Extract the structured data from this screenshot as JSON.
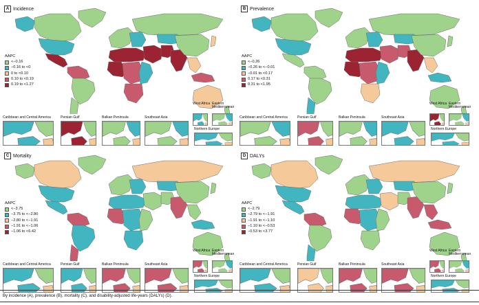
{
  "colors": {
    "c1": "#9fd28a",
    "c2": "#42b6c0",
    "c3": "#f6c99a",
    "c4": "#c85a6e",
    "c5": "#9c2332",
    "ocean": "#ffffff",
    "outline": "#6d6d6d"
  },
  "legend_title": "AAPC",
  "panels": [
    {
      "id": "A",
      "title": "Incidence",
      "legend": [
        "<−0.16",
        "−0.16 to <0",
        "0 to <0.10",
        "0.10 to <0.19",
        "0.19 to <1.27"
      ],
      "regions": {
        "na": 2,
        "ak": 2,
        "gl": 1,
        "ca": 1,
        "mx": 5,
        "sa_n": 4,
        "br": 1,
        "sa_s": 1,
        "eu_w": 1,
        "eu_e": 2,
        "ru": 1,
        "af_n": 5,
        "af_w": 5,
        "af_c": 4,
        "af_e": 2,
        "af_s": 4,
        "mena": 5,
        "ir": 5,
        "ca_st": 2,
        "in": 5,
        "cn": 1,
        "se": 3,
        "jp": 3,
        "au": 3,
        "id": 4,
        "nz": 1
      },
      "insets": {
        "carib": 2,
        "gulf": 5,
        "balkan": 1,
        "seasia": 1,
        "westaf": 2,
        "eastmed": 1,
        "neu": 2
      }
    },
    {
      "id": "B",
      "title": "Prevalence",
      "legend": [
        "<−0.26",
        "−0.26 to <−0.01",
        "−0.01 to <0.17",
        "0.17 to <0.31",
        "0.31 to <1.95"
      ],
      "regions": {
        "na": 2,
        "ak": 2,
        "gl": 1,
        "ca": 1,
        "mx": 1,
        "sa_n": 1,
        "br": 1,
        "sa_s": 2,
        "eu_w": 1,
        "eu_e": 2,
        "ru": 1,
        "af_n": 5,
        "af_w": 5,
        "af_c": 4,
        "af_e": 2,
        "af_s": 3,
        "mena": 4,
        "ir": 4,
        "ca_st": 2,
        "in": 5,
        "cn": 1,
        "se": 3,
        "jp": 1,
        "au": 1,
        "id": 2,
        "nz": 1
      },
      "insets": {
        "carib": 1,
        "gulf": 4,
        "balkan": 1,
        "seasia": 2,
        "westaf": 5,
        "eastmed": 1,
        "neu": 2
      }
    },
    {
      "id": "C",
      "title": "Mortality",
      "legend": [
        "<−3.75",
        "−3.75 to <−2.80",
        "−2.80 to <−1.91",
        "−1.91 to <−1.06",
        "−1.06 to <6.42"
      ],
      "regions": {
        "na": 2,
        "ak": 1,
        "gl": 1,
        "ca": 3,
        "mx": 2,
        "sa_n": 4,
        "br": 2,
        "sa_s": 4,
        "eu_w": 1,
        "eu_e": 2,
        "ru": 3,
        "af_n": 2,
        "af_w": 4,
        "af_c": 2,
        "af_e": 1,
        "af_s": 2,
        "mena": 1,
        "ir": 1,
        "ca_st": 2,
        "in": 4,
        "cn": 1,
        "se": 1,
        "jp": 1,
        "au": 1,
        "id": 2,
        "nz": 1
      },
      "insets": {
        "carib": 2,
        "gulf": 2,
        "balkan": 4,
        "seasia": 4,
        "westaf": 4,
        "eastmed": 1,
        "neu": 2
      }
    },
    {
      "id": "D",
      "title": "DALYs",
      "legend": [
        "<−2.79",
        "−2.79 to <−1.91",
        "−1.91 to <−1.10",
        "−1.10 to <−0.53",
        "−0.53 to <3.77"
      ],
      "regions": {
        "na": 2,
        "ak": 1,
        "gl": 1,
        "ca": 3,
        "mx": 2,
        "sa_n": 4,
        "br": 1,
        "sa_s": 2,
        "eu_w": 1,
        "eu_e": 2,
        "ru": 3,
        "af_n": 2,
        "af_w": 4,
        "af_c": 2,
        "af_e": 1,
        "af_s": 1,
        "mena": 3,
        "ir": 1,
        "ca_st": 2,
        "in": 4,
        "cn": 1,
        "se": 4,
        "jp": 1,
        "au": 1,
        "id": 4,
        "nz": 1
      },
      "insets": {
        "carib": 2,
        "gulf": 3,
        "balkan": 4,
        "seasia": 4,
        "westaf": 4,
        "eastmed": 1,
        "neu": 2
      }
    }
  ],
  "inset_labels": {
    "carib": "Caribbean and Central America",
    "gulf": "Persian Gulf",
    "balkan": "Balkan Peninsula",
    "seasia": "Southeast Asia",
    "westaf": "West Africa",
    "eastmed": "Eastern Mediterranean",
    "neu": "Northern Europe"
  },
  "caption": "By incidence (A), prevalence (B), mortality (C), and disability-adjusted life-years (DALYs) (D)."
}
